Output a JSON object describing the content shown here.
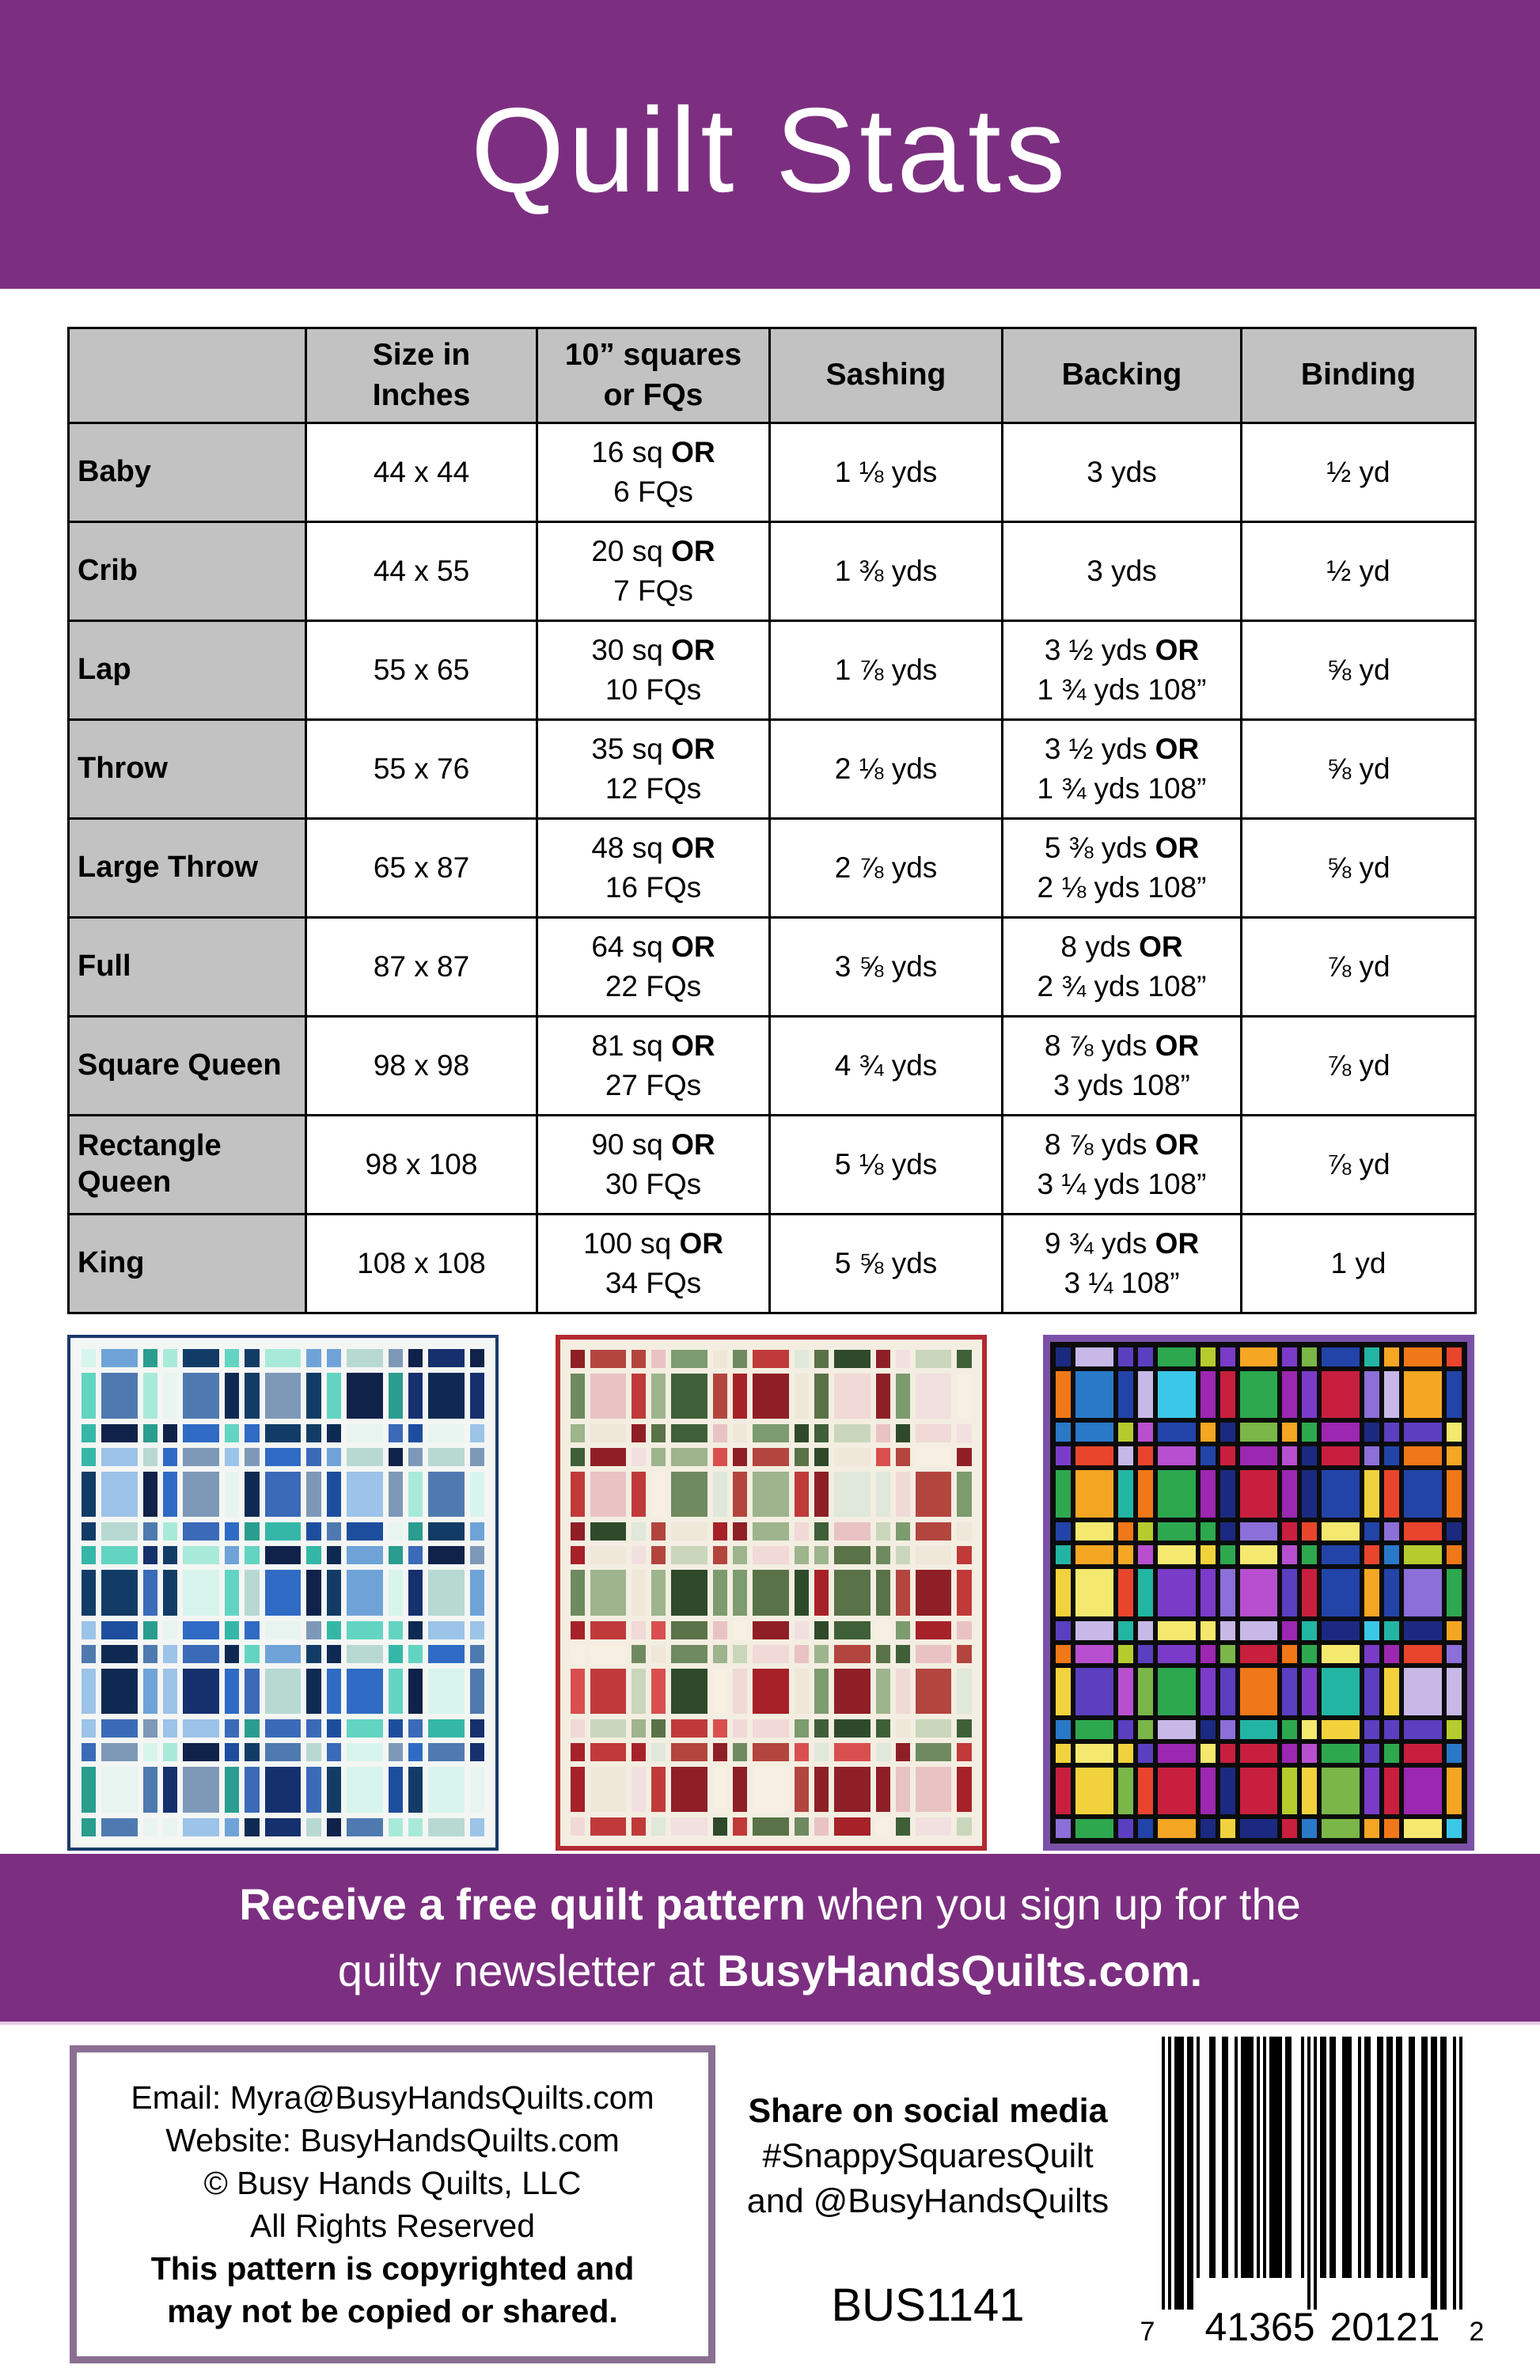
{
  "page": {
    "title": "Quilt Stats"
  },
  "colors": {
    "header_purple": "#7c2f80",
    "table_gray": "#c2c2c2",
    "contact_border": "#8a6f91",
    "quilt1_border": "#1b3a6b",
    "quilt2_border": "#b32a30",
    "quilt3_border": "#7b51a8"
  },
  "table": {
    "headers": [
      "",
      "Size in\nInches",
      "10” squares\nor FQs",
      "Sashing",
      "Backing",
      "Binding"
    ],
    "rows": [
      {
        "label": "Baby",
        "size": "44 x 44",
        "squares": "16 sq OR\n6 FQs",
        "sashing": "1 ⅛ yds",
        "backing": "3 yds",
        "binding": "½ yd"
      },
      {
        "label": "Crib",
        "size": "44 x 55",
        "squares": "20 sq OR\n7 FQs",
        "sashing": "1 ⅜ yds",
        "backing": "3 yds",
        "binding": "½ yd"
      },
      {
        "label": "Lap",
        "size": "55 x 65",
        "squares": "30 sq OR\n10 FQs",
        "sashing": "1 ⅞ yds",
        "backing": "3 ½ yds OR\n1 ¾ yds 108”",
        "binding": "⅝ yd"
      },
      {
        "label": "Throw",
        "size": "55 x 76",
        "squares": "35 sq OR\n12 FQs",
        "sashing": "2 ⅛ yds",
        "backing": "3 ½ yds OR\n1 ¾ yds 108”",
        "binding": "⅝ yd"
      },
      {
        "label": "Large Throw",
        "size": "65 x 87",
        "squares": "48 sq OR\n16 FQs",
        "sashing": "2 ⅞ yds",
        "backing": "5 ⅜ yds OR\n2 ⅛ yds 108”",
        "binding": "⅝ yd"
      },
      {
        "label": "Full",
        "size": "87 x 87",
        "squares": "64 sq OR\n22 FQs",
        "sashing": "3 ⅝ yds",
        "backing": "8 yds OR\n2 ¾ yds 108”",
        "binding": "⅞ yd"
      },
      {
        "label": "Square Queen",
        "size": "98 x 98",
        "squares": "81 sq OR\n27 FQs",
        "sashing": "4 ¾ yds",
        "backing": "8 ⅞ yds OR\n3 yds 108”",
        "binding": "⅞ yd"
      },
      {
        "label": "Rectangle Queen",
        "size": "98 x 108",
        "squares": "90 sq OR\n30 FQs",
        "sashing": "5 ⅛ yds",
        "backing": "8 ⅞ yds OR\n3 ¼ yds 108”",
        "binding": "⅞ yd"
      },
      {
        "label": "King",
        "size": "108 x 108",
        "squares": "100 sq OR\n34 FQs",
        "sashing": "5 ⅝ yds",
        "backing": "9 ¾ yds OR\n3 ¼ 108”",
        "binding": "1 yd"
      }
    ]
  },
  "quilts": [
    {
      "name": "blue-aqua-plaid-quilt-preview",
      "palette": [
        "#16306e",
        "#1d4e9e",
        "#2f6bc4",
        "#6fa3d8",
        "#9cc3e8",
        "#123c66",
        "#0f2a52",
        "#35b7a8",
        "#63d4c2",
        "#a8ead9",
        "#d7f5ec",
        "#e8f4f0",
        "#7e98b8",
        "#4f7ab0",
        "#b7d9d2",
        "#2a9d8f",
        "#11224a",
        "#3a6ab8"
      ]
    },
    {
      "name": "christmas-plaid-quilt-preview",
      "palette": [
        "#a62228",
        "#c03a3a",
        "#8f1f26",
        "#d94f4f",
        "#2e4a2b",
        "#3f5f38",
        "#6f8a60",
        "#9db48d",
        "#c9d6bb",
        "#f0d9d6",
        "#e9c2c4",
        "#f6efe2",
        "#efe7d8",
        "#dfe8da",
        "#b3453f",
        "#5a7247",
        "#f2dfe0",
        "#7c9b6e"
      ]
    },
    {
      "name": "stained-glass-plaid-quilt-preview",
      "palette": [
        "#c81f3e",
        "#e8452c",
        "#f07818",
        "#f5a623",
        "#f2d23c",
        "#b5cc2e",
        "#7ab648",
        "#2da84f",
        "#23b5a3",
        "#3bc8e8",
        "#2979c8",
        "#2244a8",
        "#1b2a80",
        "#5b3fc0",
        "#7a3cc8",
        "#9c27b0",
        "#b84fd0",
        "#8c6fd8",
        "#c7b8e8",
        "#f5e86e"
      ]
    }
  ],
  "banner": {
    "line1_bold": "Receive a free quilt pattern",
    "line1_rest": " when you sign up for the",
    "line2_rest": "quilty newsletter at ",
    "line2_bold": "BusyHandsQuilts.com."
  },
  "contact": {
    "lines": [
      "Email: Myra@BusyHandsQuilts.com",
      "Website: BusyHandsQuilts.com",
      "© Busy Hands Quilts, LLC",
      "All Rights Reserved"
    ],
    "bold_lines": [
      "This pattern is copyrighted and",
      "may not be copied or shared."
    ]
  },
  "social": {
    "heading": "Share on social media",
    "hashtag": "#SnappySquaresQuilt",
    "handle": "and @BusyHandsQuilts",
    "sku": "BUS1141"
  },
  "barcode": {
    "digits": "741365201212",
    "left_digit": "7",
    "group1": "41365",
    "group2": "20121",
    "right_digit": "2"
  }
}
